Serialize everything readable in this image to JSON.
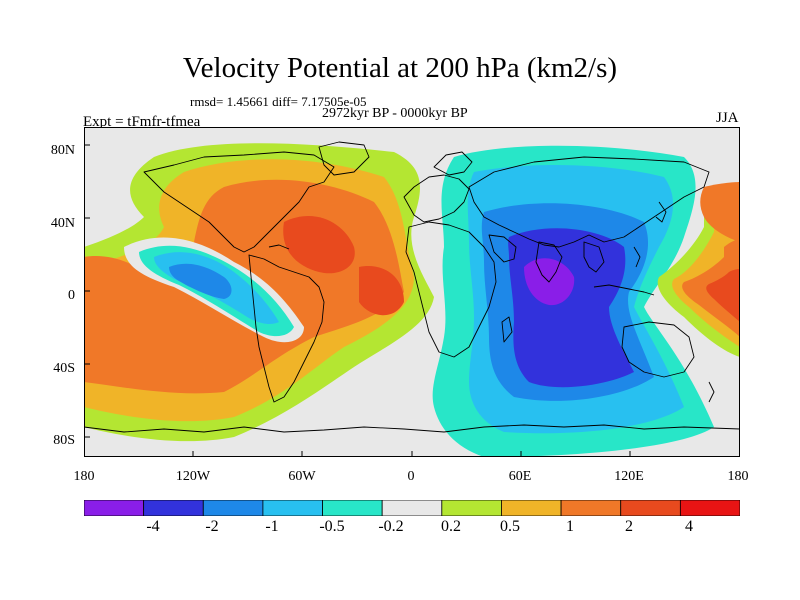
{
  "figure": {
    "title": "Velocity Potential at 200 hPa (km2/s)",
    "stats_line": "rmsd= 1.45661 diff= 7.17505e-05",
    "period_line": "2972kyr BP - 0000kyr BP",
    "left_label": "Expt = tFmfr-tfmea",
    "right_label": "JJA"
  },
  "map": {
    "projection": "cylindrical-equidistant",
    "lon_range": [
      -180,
      180
    ],
    "lat_range": [
      -90,
      90
    ],
    "y_tick_labels": [
      "80N",
      "40N",
      "0",
      "40S",
      "80S"
    ],
    "x_tick_labels": [
      "180",
      "120W",
      "60W",
      "0",
      "60E",
      "120E",
      "180"
    ],
    "background_color": "#e8e8e8",
    "coastline_color": "#000000"
  },
  "colorbar": {
    "levels": [
      "-4",
      "-2",
      "-1",
      "-0.5",
      "-0.2",
      "0.2",
      "0.5",
      "1",
      "2",
      "4"
    ],
    "colors": [
      "#8a1ee8",
      "#3232dc",
      "#1e88e8",
      "#28c0f0",
      "#28e6c8",
      "#e8e8e8",
      "#b4e632",
      "#f0b428",
      "#f07828",
      "#e84a1e",
      "#e81414"
    ]
  },
  "chart_data": {
    "type": "heatmap",
    "title": "Velocity Potential at 200 hPa (km2/s)",
    "xlabel": "",
    "ylabel": "",
    "xlim": [
      -180,
      180
    ],
    "ylim": [
      -90,
      90
    ],
    "anomaly_centers": [
      {
        "lon": 75,
        "lat": 0,
        "sign": "negative",
        "peak": "< -4"
      },
      {
        "lon": -125,
        "lat": 3,
        "sign": "negative",
        "peak": "-2 to -1"
      },
      {
        "lon": -70,
        "lat": 20,
        "sign": "positive",
        "peak": "2 to 4"
      },
      {
        "lon": -25,
        "lat": 0,
        "sign": "positive",
        "peak": "2 to 4"
      },
      {
        "lon": -155,
        "lat": -25,
        "sign": "positive",
        "peak": "2 to 4"
      },
      {
        "lon": 165,
        "lat": 0,
        "sign": "positive",
        "peak": "2 to 4"
      }
    ]
  }
}
